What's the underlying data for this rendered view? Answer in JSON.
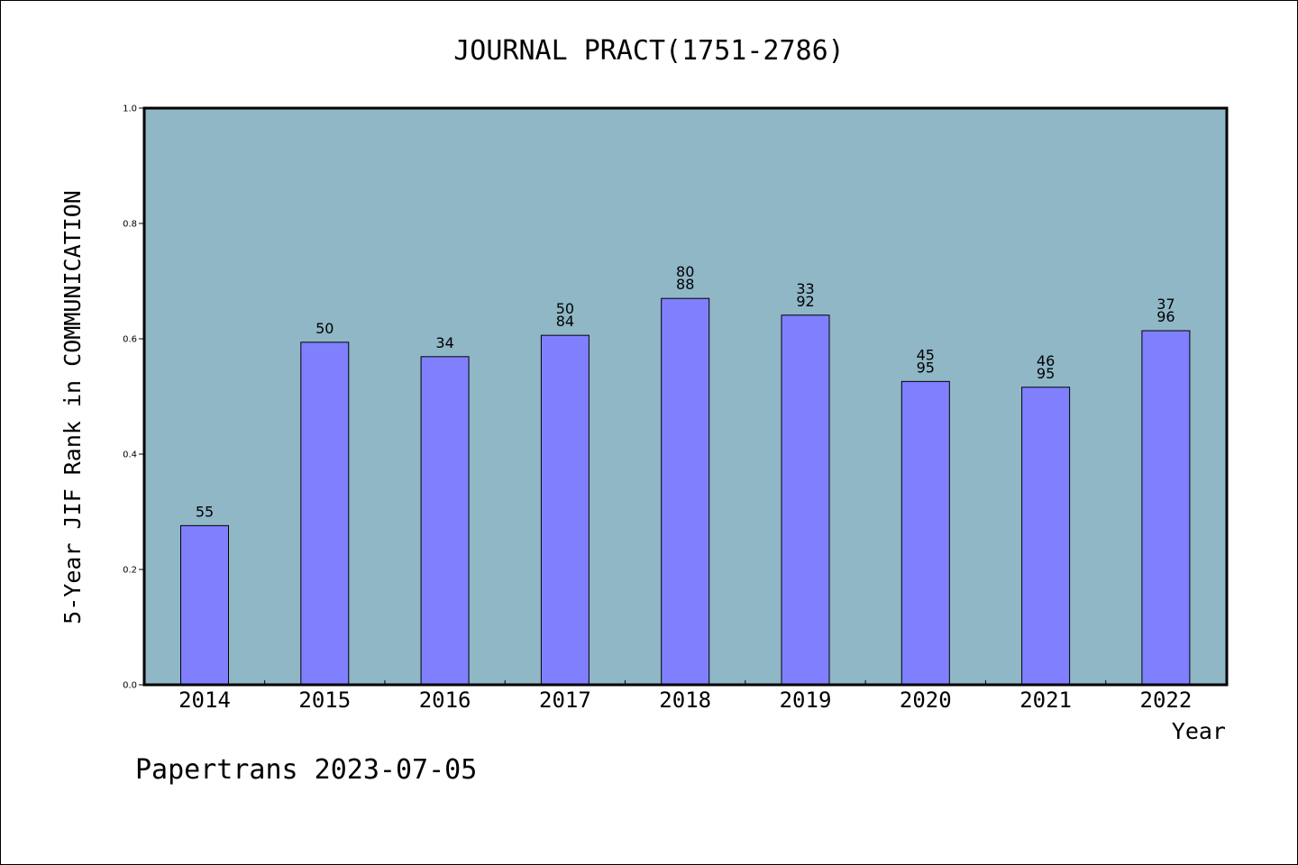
{
  "chart_data": {
    "type": "bar",
    "title": "JOURNAL PRACT(1751-2786)",
    "xlabel": "Year",
    "ylabel": "5-Year JIF Rank in COMMUNICATION",
    "footer": "Papertrans 2023-07-05",
    "categories": [
      "2014",
      "2015",
      "2016",
      "2017",
      "2018",
      "2019",
      "2020",
      "2021",
      "2022"
    ],
    "values": [
      0.276,
      0.594,
      0.569,
      0.606,
      0.67,
      0.641,
      0.526,
      0.516,
      0.614
    ],
    "labels": [
      [
        "55"
      ],
      [
        "50"
      ],
      [
        "34"
      ],
      [
        "50",
        "84"
      ],
      [
        "80",
        "88"
      ],
      [
        "33",
        "92"
      ],
      [
        "45",
        "95"
      ],
      [
        "46",
        "95"
      ],
      [
        "37",
        "96"
      ]
    ],
    "ylim": [
      0,
      1
    ],
    "yticks": [
      "0.0",
      "0.2",
      "0.4",
      "0.6",
      "0.8",
      "1.0"
    ],
    "grid": false,
    "colors": {
      "bar": "#8080ff",
      "plot_bg": "#8fb7c6",
      "axis": "#000000"
    }
  }
}
